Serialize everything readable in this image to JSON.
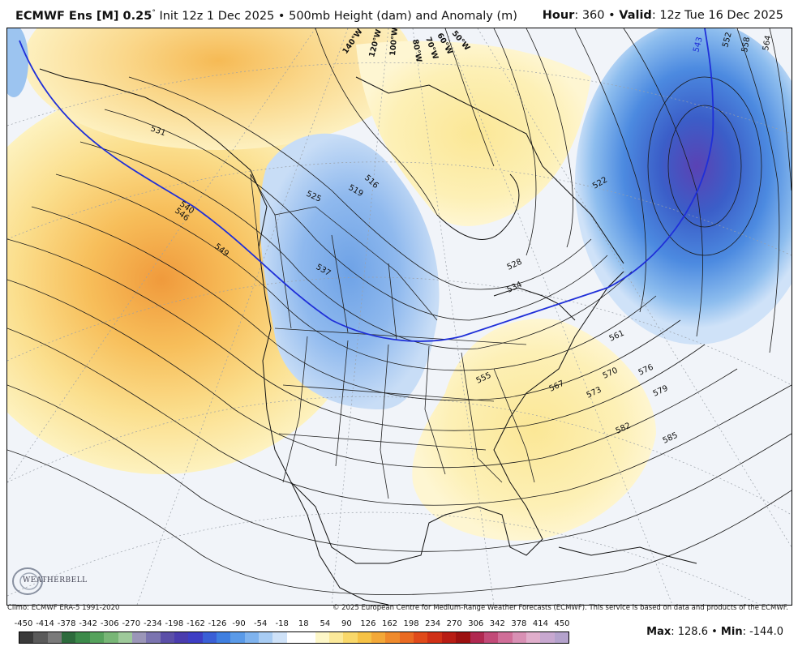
{
  "header": {
    "model": "ECMWF Ens [M] 0.25",
    "degree_sign": "°",
    "init": "Init 12z 1 Dec 2025 • 500mb Height (dam) and Anomaly (m)",
    "hour_label": "Hour",
    "hour_value": ": 360 • ",
    "valid_label": "Valid",
    "valid_value": ": 12z Tue 16 Dec 2025"
  },
  "map": {
    "contour_labels": [
      "531",
      "540",
      "546",
      "549",
      "525",
      "519",
      "516",
      "537",
      "528",
      "534",
      "522",
      "543",
      "552",
      "558",
      "564",
      "561",
      "555",
      "567",
      "570",
      "573",
      "576",
      "579",
      "582",
      "585"
    ],
    "meridian_labels": [
      "140°W",
      "120°W",
      "100°W",
      "80°W",
      "70°W",
      "60°W",
      "50°W"
    ]
  },
  "credits": {
    "climo": "Climo: ECMWF ERA-5 1991-2020",
    "copyright": "© 2025 European Centre for Medium-Range Weather Forecasts (ECMWF). This service is based on data and products of the ECMWF."
  },
  "logo": {
    "text": "WEATHERBELL"
  },
  "colorbar": {
    "ticks": [
      "-450",
      "-414",
      "-378",
      "-342",
      "-306",
      "-270",
      "-234",
      "-198",
      "-162",
      "-126",
      "-90",
      "-54",
      "-18",
      "18",
      "54",
      "90",
      "126",
      "162",
      "198",
      "234",
      "270",
      "306",
      "342",
      "378",
      "414",
      "450"
    ],
    "colors": [
      "#3a3a3a",
      "#5a5a5a",
      "#7a7a7a",
      "#2d6b3c",
      "#3c8a4a",
      "#56a25c",
      "#78b676",
      "#9ec99a",
      "#9b96b8",
      "#7b74b0",
      "#5b4fa8",
      "#4a3cae",
      "#3e3ec4",
      "#3a5fd6",
      "#3f7fe0",
      "#5a9ae8",
      "#7fb3ee",
      "#a8ccf3",
      "#cfe2f8",
      "#ffffff",
      "#ffffff",
      "#fdf7c8",
      "#fbe99a",
      "#f9d86a",
      "#f6c246",
      "#f3a838",
      "#ef8a2c",
      "#ea6a22",
      "#e04a1a",
      "#d03016",
      "#b81c14",
      "#9c1010",
      "#b02850",
      "#c24a78",
      "#d06e98",
      "#d890b4",
      "#e0aecb",
      "#c8a8d0",
      "#b4a2cc"
    ],
    "max_label": "Max",
    "max_value": ": 128.6 • ",
    "min_label": "Min",
    "min_value": ": -144.0"
  }
}
